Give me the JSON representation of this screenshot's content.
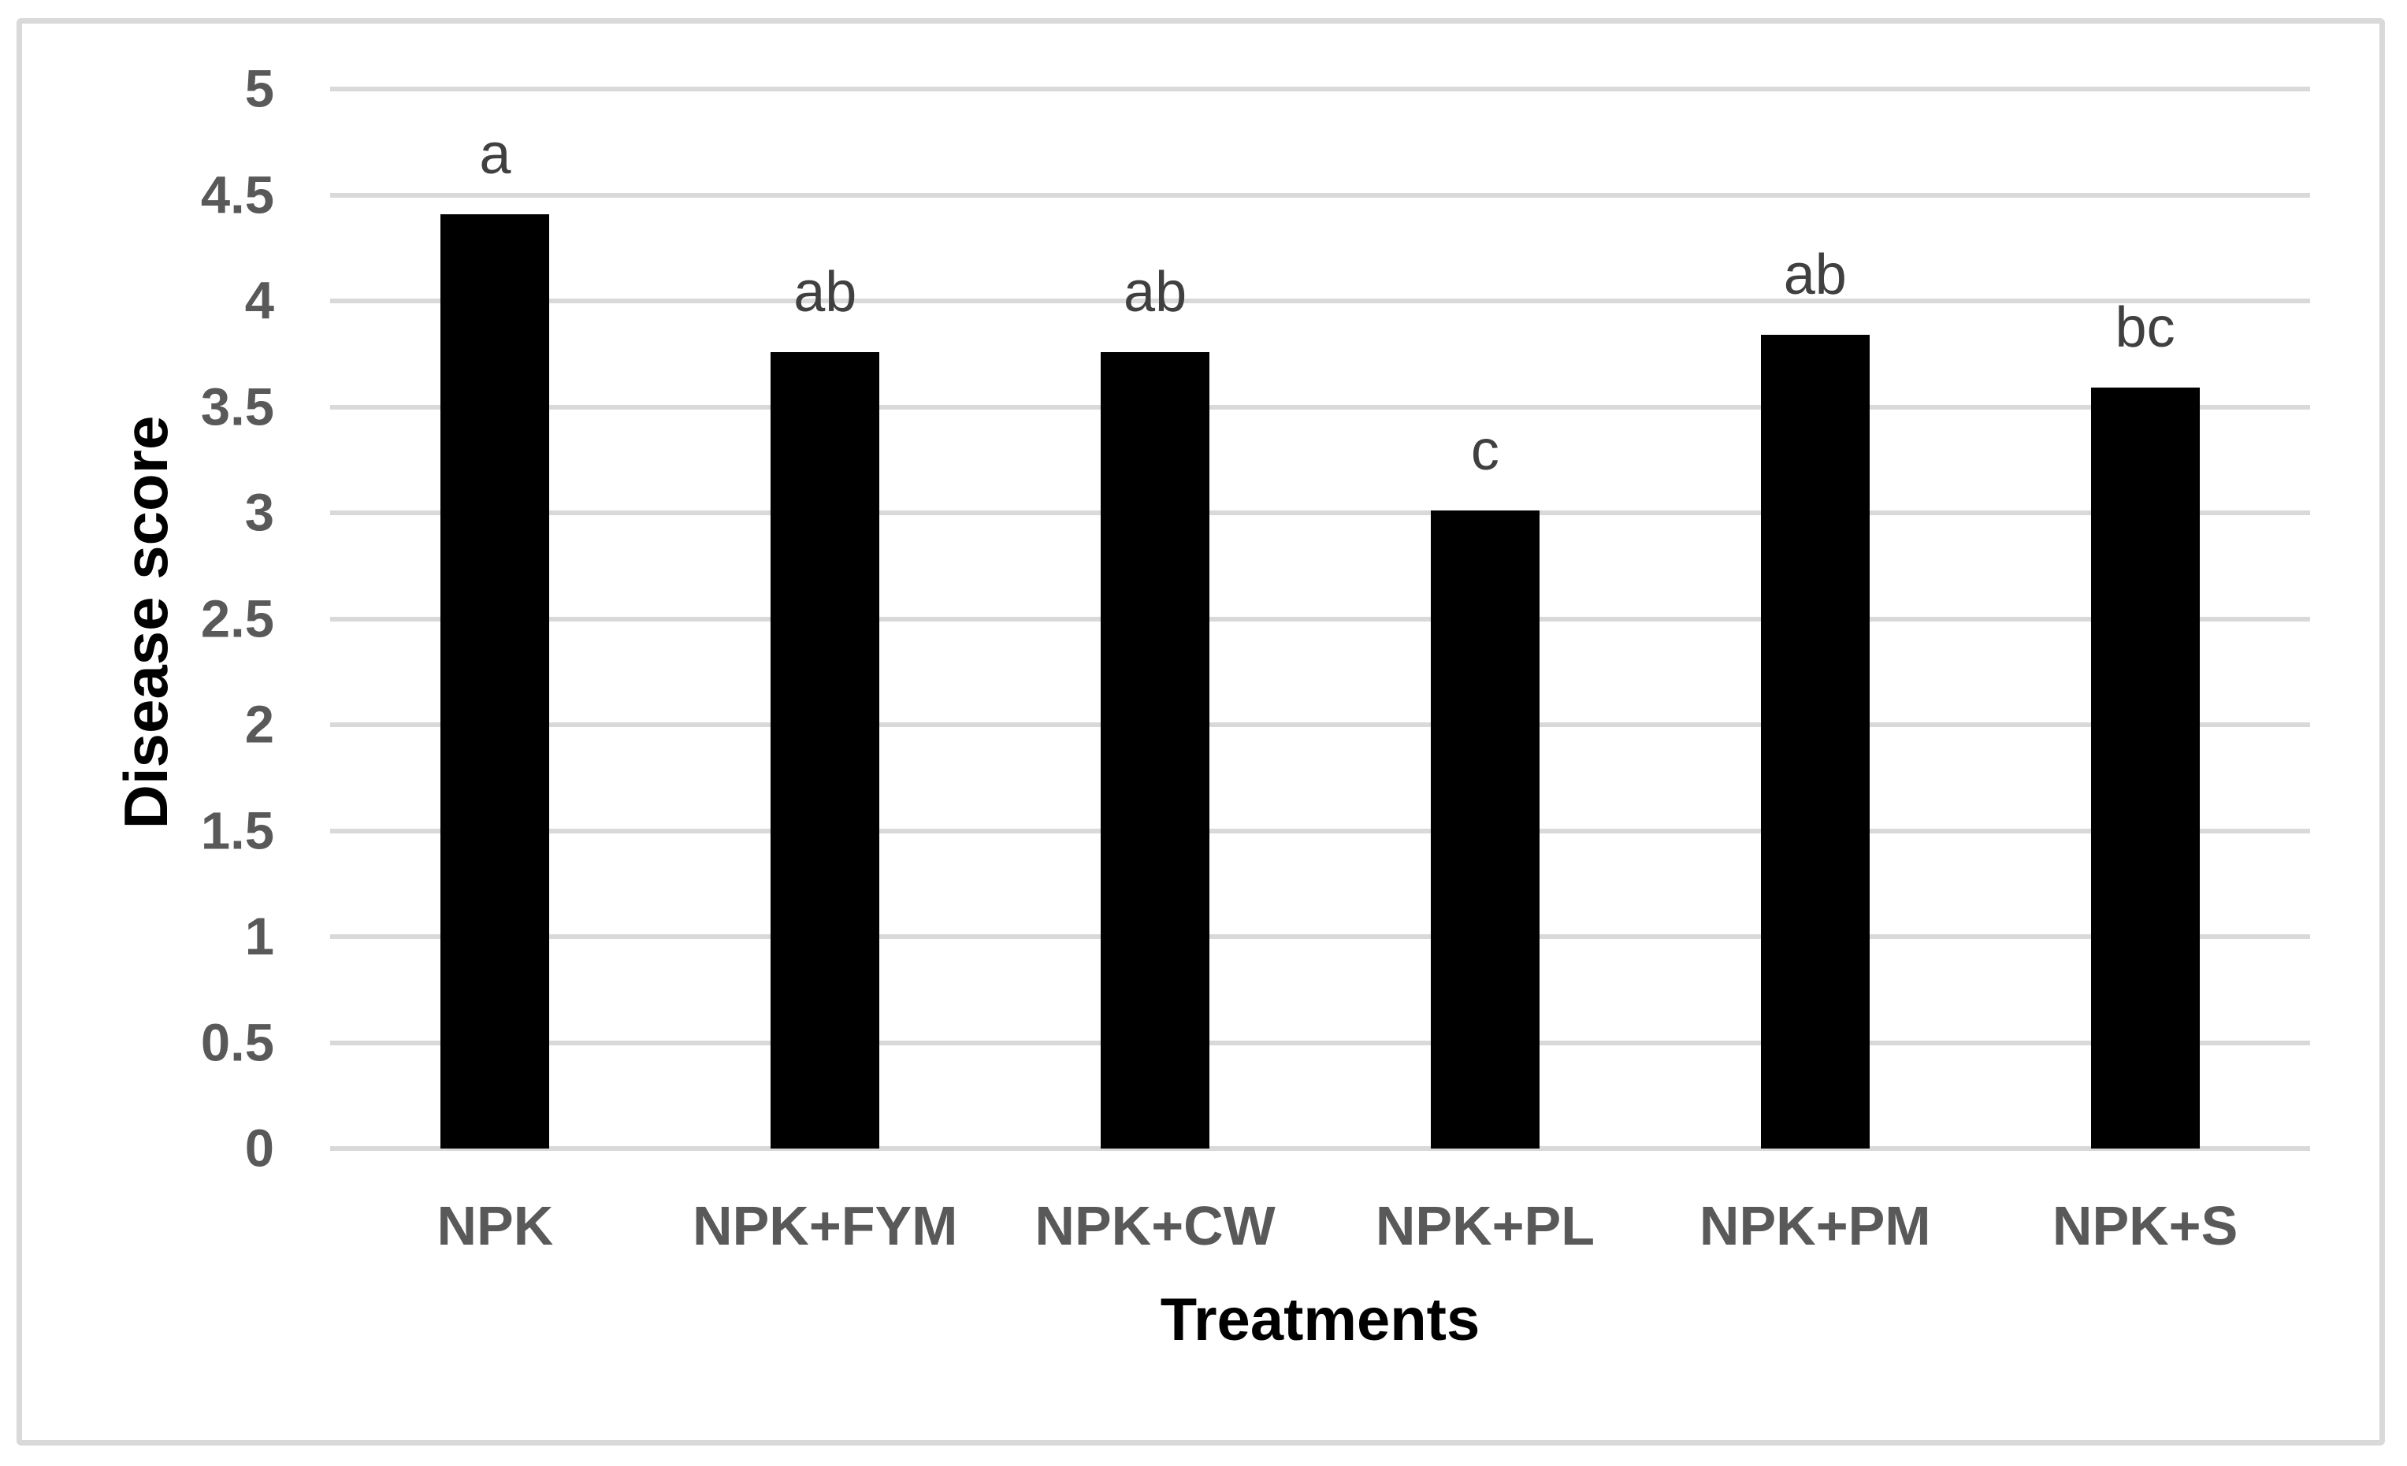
{
  "figure": {
    "background": "#ffffff",
    "border_color": "#d9d9d9"
  },
  "chart_data": {
    "type": "bar",
    "title": "",
    "xlabel": "Treatments",
    "ylabel": "Disease score",
    "categories": [
      "NPK",
      "NPK+FYM",
      "NPK+CW",
      "NPK+PL",
      "NPK+PM",
      "NPK+S"
    ],
    "values": [
      4.41,
      3.76,
      3.76,
      3.01,
      3.84,
      3.59
    ],
    "bar_annotations": [
      "a",
      "ab",
      "ab",
      "c",
      "ab",
      "bc"
    ],
    "ylim": [
      0,
      5
    ],
    "ytick_step": 0.5,
    "ytick_labels": [
      "0",
      "0.5",
      "1",
      "1.5",
      "2",
      "2.5",
      "3",
      "3.5",
      "4",
      "4.5",
      "5"
    ],
    "grid": true,
    "legend": "none",
    "bar_color": "#000000",
    "gridline_color": "#d9d9d9",
    "tick_label_color": "#595959",
    "annotation_color": "#404040",
    "axis_title_color": "#000000"
  }
}
